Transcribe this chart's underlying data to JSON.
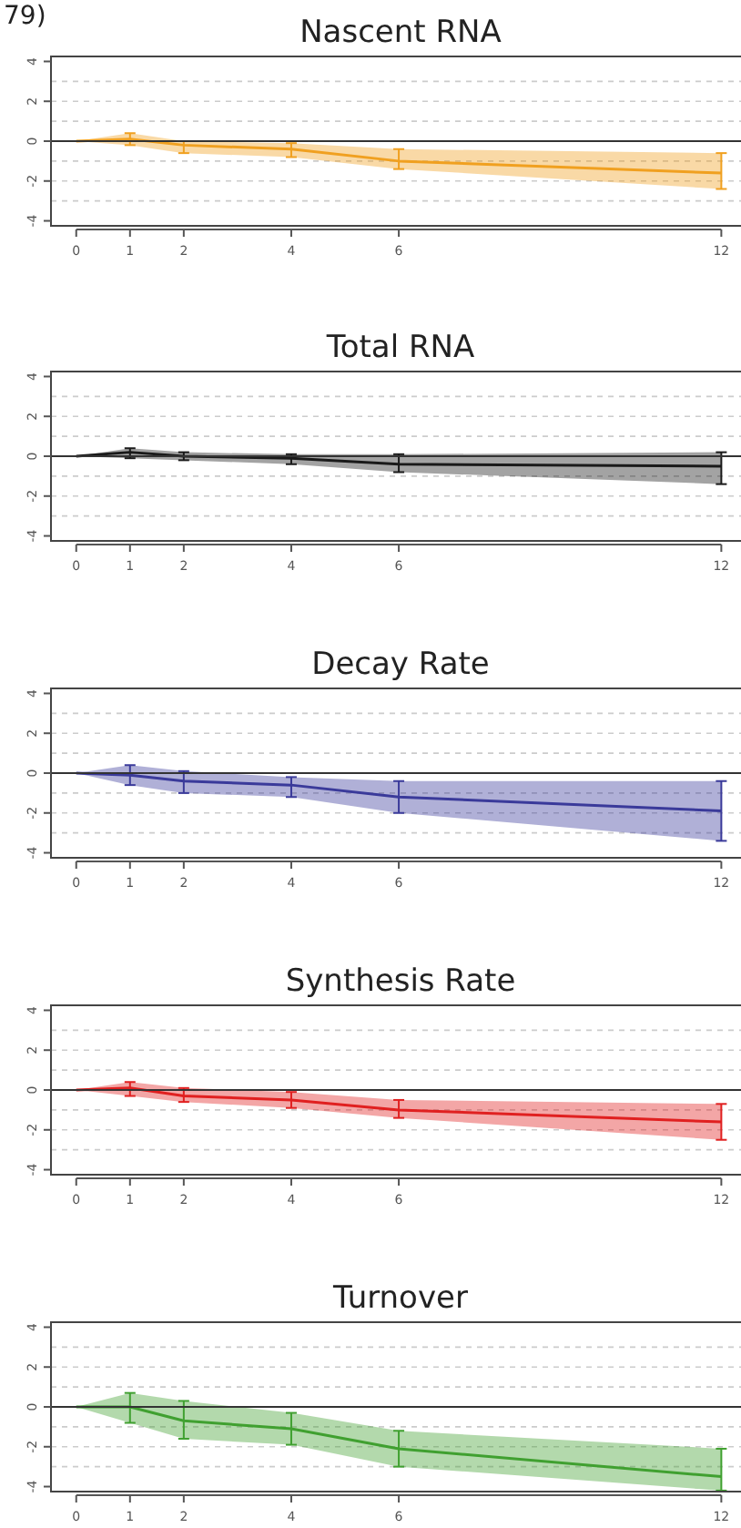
{
  "chart_data": [
    {
      "type": "line",
      "title": "Nascent RNA",
      "annotations": [
        "79)"
      ],
      "x": [
        0,
        1,
        2,
        4,
        6,
        12
      ],
      "xlim": [
        -0.47,
        12.4
      ],
      "xticks": [
        0,
        1,
        2,
        4,
        6,
        12
      ],
      "ylim": [
        -4.25,
        4.25
      ],
      "yticks": [
        -4,
        -2,
        0,
        2,
        4
      ],
      "series": [
        {
          "color": "#f0a020",
          "values": [
            0,
            0.1,
            -0.2,
            -0.4,
            -1,
            -1.6
          ],
          "errors": [
            null,
            [
              -0.2,
              0.4
            ],
            [
              -0.6,
              0
            ],
            [
              -0.8,
              -0.1
            ],
            [
              -1.4,
              -0.4
            ],
            [
              -2.4,
              -0.6
            ]
          ],
          "lower": [
            0,
            -0.2,
            -0.6,
            -0.8,
            -1.4,
            -2.4
          ],
          "upper": [
            0,
            0.4,
            0,
            -0.1,
            -0.4,
            -0.6
          ]
        }
      ],
      "ref_lines": [
        {
          "axis": "y",
          "value": 0,
          "color": "#333333",
          "line_style": "solid"
        },
        {
          "axis": "y",
          "value": 1,
          "color": "#cccccc",
          "line_style": "dashed"
        },
        {
          "axis": "y",
          "value": 2,
          "color": "#cccccc",
          "line_style": "dashed"
        },
        {
          "axis": "y",
          "value": 3,
          "color": "#cccccc",
          "line_style": "dashed"
        },
        {
          "axis": "y",
          "value": -1,
          "color": "#cccccc",
          "line_style": "dashed"
        },
        {
          "axis": "y",
          "value": -2,
          "color": "#cccccc",
          "line_style": "dashed"
        },
        {
          "axis": "y",
          "value": -3,
          "color": "#cccccc",
          "line_style": "dashed"
        }
      ]
    },
    {
      "type": "line",
      "title": "Total RNA",
      "x": [
        0,
        1,
        2,
        4,
        6,
        12
      ],
      "xlim": [
        -0.47,
        12.4
      ],
      "xticks": [
        0,
        1,
        2,
        4,
        6,
        12
      ],
      "ylim": [
        -4.25,
        4.25
      ],
      "yticks": [
        -4,
        -2,
        0,
        2,
        4
      ],
      "series": [
        {
          "color": "#1a1a1a",
          "values": [
            0,
            0.2,
            0,
            -0.1,
            -0.4,
            -0.5
          ],
          "errors": [
            null,
            [
              -0.1,
              0.4
            ],
            [
              -0.2,
              0.2
            ],
            [
              -0.4,
              0.1
            ],
            [
              -0.8,
              0.1
            ],
            [
              -1.4,
              0.2
            ]
          ],
          "lower": [
            0,
            -0.1,
            -0.2,
            -0.4,
            -0.8,
            -1.4
          ],
          "upper": [
            0,
            0.4,
            0.2,
            0.1,
            0.1,
            0.2
          ]
        }
      ],
      "ref_lines": [
        {
          "axis": "y",
          "value": 0,
          "color": "#333333",
          "line_style": "solid"
        },
        {
          "axis": "y",
          "value": 1,
          "color": "#cccccc",
          "line_style": "dashed"
        },
        {
          "axis": "y",
          "value": 2,
          "color": "#cccccc",
          "line_style": "dashed"
        },
        {
          "axis": "y",
          "value": 3,
          "color": "#cccccc",
          "line_style": "dashed"
        },
        {
          "axis": "y",
          "value": -1,
          "color": "#cccccc",
          "line_style": "dashed"
        },
        {
          "axis": "y",
          "value": -2,
          "color": "#cccccc",
          "line_style": "dashed"
        },
        {
          "axis": "y",
          "value": -3,
          "color": "#cccccc",
          "line_style": "dashed"
        }
      ]
    },
    {
      "type": "line",
      "title": "Decay Rate",
      "x": [
        0,
        1,
        2,
        4,
        6,
        12
      ],
      "xlim": [
        -0.47,
        12.4
      ],
      "xticks": [
        0,
        1,
        2,
        4,
        6,
        12
      ],
      "ylim": [
        -4.25,
        4.25
      ],
      "yticks": [
        -4,
        -2,
        0,
        2,
        4
      ],
      "series": [
        {
          "color": "#3a3a9a",
          "values": [
            0,
            -0.1,
            -0.4,
            -0.6,
            -1.2,
            -1.9
          ],
          "errors": [
            null,
            [
              -0.6,
              0.4
            ],
            [
              -1,
              0.1
            ],
            [
              -1.2,
              -0.2
            ],
            [
              -2,
              -0.4
            ],
            [
              -3.4,
              -0.4
            ]
          ],
          "lower": [
            0,
            -0.6,
            -1,
            -1.2,
            -2,
            -3.4
          ],
          "upper": [
            0,
            0.4,
            0.1,
            -0.2,
            -0.4,
            -0.4
          ]
        }
      ],
      "ref_lines": [
        {
          "axis": "y",
          "value": 0,
          "color": "#333333",
          "line_style": "solid"
        },
        {
          "axis": "y",
          "value": 1,
          "color": "#cccccc",
          "line_style": "dashed"
        },
        {
          "axis": "y",
          "value": 2,
          "color": "#cccccc",
          "line_style": "dashed"
        },
        {
          "axis": "y",
          "value": 3,
          "color": "#cccccc",
          "line_style": "dashed"
        },
        {
          "axis": "y",
          "value": -1,
          "color": "#cccccc",
          "line_style": "dashed"
        },
        {
          "axis": "y",
          "value": -2,
          "color": "#cccccc",
          "line_style": "dashed"
        },
        {
          "axis": "y",
          "value": -3,
          "color": "#cccccc",
          "line_style": "dashed"
        }
      ]
    },
    {
      "type": "line",
      "title": "Synthesis Rate",
      "x": [
        0,
        1,
        2,
        4,
        6,
        12
      ],
      "xlim": [
        -0.47,
        12.4
      ],
      "xticks": [
        0,
        1,
        2,
        4,
        6,
        12
      ],
      "ylim": [
        -4.25,
        4.25
      ],
      "yticks": [
        -4,
        -2,
        0,
        2,
        4
      ],
      "series": [
        {
          "color": "#e02020",
          "values": [
            0,
            0.1,
            -0.3,
            -0.5,
            -1,
            -1.6
          ],
          "errors": [
            null,
            [
              -0.3,
              0.4
            ],
            [
              -0.6,
              0.1
            ],
            [
              -0.9,
              -0.1
            ],
            [
              -1.4,
              -0.5
            ],
            [
              -2.5,
              -0.7
            ]
          ],
          "lower": [
            0,
            -0.3,
            -0.6,
            -0.9,
            -1.4,
            -2.5
          ],
          "upper": [
            0,
            0.4,
            0.1,
            -0.1,
            -0.5,
            -0.7
          ]
        }
      ],
      "ref_lines": [
        {
          "axis": "y",
          "value": 0,
          "color": "#333333",
          "line_style": "solid"
        },
        {
          "axis": "y",
          "value": 1,
          "color": "#cccccc",
          "line_style": "dashed"
        },
        {
          "axis": "y",
          "value": 2,
          "color": "#cccccc",
          "line_style": "dashed"
        },
        {
          "axis": "y",
          "value": 3,
          "color": "#cccccc",
          "line_style": "dashed"
        },
        {
          "axis": "y",
          "value": -1,
          "color": "#cccccc",
          "line_style": "dashed"
        },
        {
          "axis": "y",
          "value": -2,
          "color": "#cccccc",
          "line_style": "dashed"
        },
        {
          "axis": "y",
          "value": -3,
          "color": "#cccccc",
          "line_style": "dashed"
        }
      ]
    },
    {
      "type": "line",
      "title": "Turnover",
      "x": [
        0,
        1,
        2,
        4,
        6,
        12
      ],
      "xlim": [
        -0.47,
        12.4
      ],
      "xticks": [
        0,
        1,
        2,
        4,
        6,
        12
      ],
      "ylim": [
        -4.25,
        4.25
      ],
      "yticks": [
        -4,
        -2,
        0,
        2,
        4
      ],
      "series": [
        {
          "color": "#40a030",
          "values": [
            0,
            0,
            -0.7,
            -1.1,
            -2.1,
            -3.5
          ],
          "errors": [
            null,
            [
              -0.8,
              0.7
            ],
            [
              -1.6,
              0.3
            ],
            [
              -1.9,
              -0.3
            ],
            [
              -3,
              -1.2
            ],
            [
              -4.2,
              -2.1
            ]
          ],
          "lower": [
            0,
            -0.8,
            -1.6,
            -1.9,
            -3,
            -4.2
          ],
          "upper": [
            0,
            0.7,
            0.3,
            -0.3,
            -1.2,
            -2.1
          ]
        }
      ],
      "ref_lines": [
        {
          "axis": "y",
          "value": 0,
          "color": "#333333",
          "line_style": "solid"
        },
        {
          "axis": "y",
          "value": 1,
          "color": "#cccccc",
          "line_style": "dashed"
        },
        {
          "axis": "y",
          "value": 2,
          "color": "#cccccc",
          "line_style": "dashed"
        },
        {
          "axis": "y",
          "value": 3,
          "color": "#cccccc",
          "line_style": "dashed"
        },
        {
          "axis": "y",
          "value": -1,
          "color": "#cccccc",
          "line_style": "dashed"
        },
        {
          "axis": "y",
          "value": -2,
          "color": "#cccccc",
          "line_style": "dashed"
        },
        {
          "axis": "y",
          "value": -3,
          "color": "#cccccc",
          "line_style": "dashed"
        }
      ]
    }
  ]
}
